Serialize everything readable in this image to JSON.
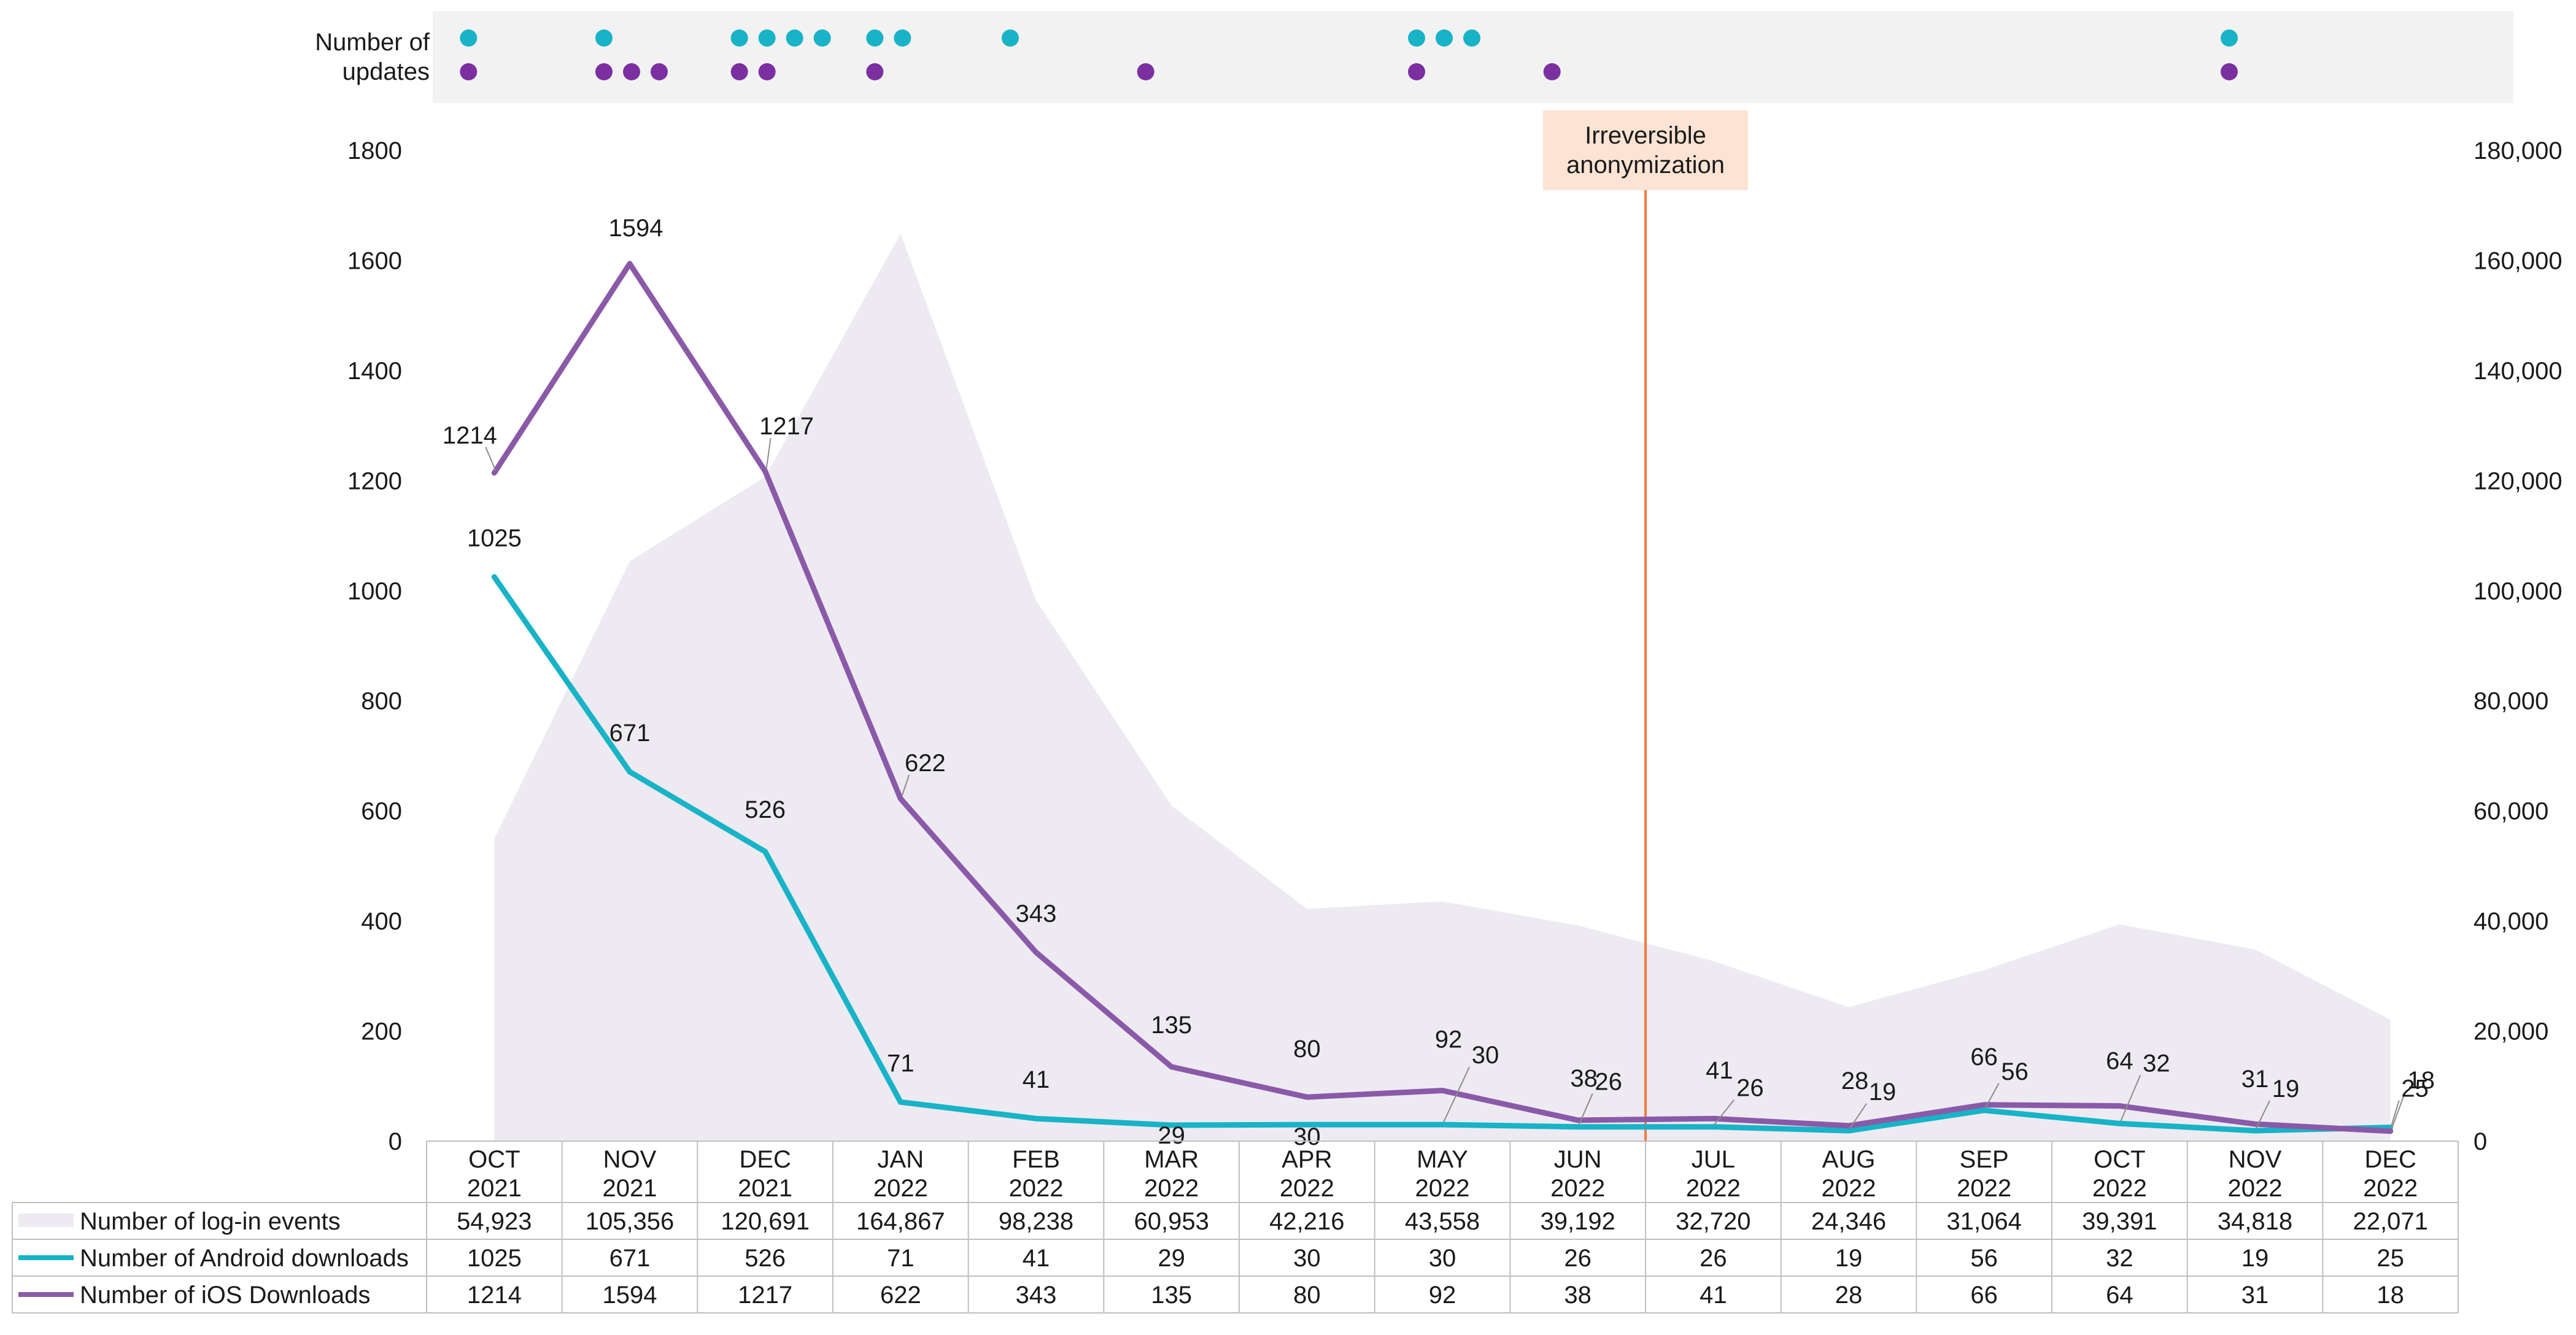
{
  "chart_data": {
    "type": "line",
    "categories": [
      [
        "OCT",
        "2021"
      ],
      [
        "NOV",
        "2021"
      ],
      [
        "DEC",
        "2021"
      ],
      [
        "JAN",
        "2022"
      ],
      [
        "FEB",
        "2022"
      ],
      [
        "MAR",
        "2022"
      ],
      [
        "APR",
        "2022"
      ],
      [
        "MAY",
        "2022"
      ],
      [
        "JUN",
        "2022"
      ],
      [
        "JUL",
        "2022"
      ],
      [
        "AUG",
        "2022"
      ],
      [
        "SEP",
        "2022"
      ],
      [
        "OCT",
        "2022"
      ],
      [
        "NOV",
        "2022"
      ],
      [
        "DEC",
        "2022"
      ]
    ],
    "y_left": {
      "min": 0,
      "max": 1800,
      "ticks": [
        "0",
        "200",
        "400",
        "600",
        "800",
        "1000",
        "1200",
        "1400",
        "1600",
        "1800"
      ]
    },
    "y_right": {
      "min": 0,
      "max": 180000,
      "ticks": [
        "0",
        "20,000",
        "40,000",
        "60,000",
        "80,000",
        "100,000",
        "120,000",
        "140,000",
        "160,000",
        "180,000"
      ]
    },
    "series": [
      {
        "name": "Number of log-in events",
        "kind": "area",
        "axis": "right",
        "color": "#eeeaf2",
        "values": [
          54923,
          105356,
          120691,
          164867,
          98238,
          60953,
          42216,
          43558,
          39192,
          32720,
          24346,
          31064,
          39391,
          34818,
          22071
        ],
        "labels": [
          "54,923",
          "105,356",
          "120,691",
          "164,867",
          "98,238",
          "60,953",
          "42,216",
          "43,558",
          "39,192",
          "32,720",
          "24,346",
          "31,064",
          "39,391",
          "34,818",
          "22,071"
        ]
      },
      {
        "name": "Number of Android downloads",
        "kind": "line",
        "axis": "left",
        "color": "#18b3c6",
        "values": [
          1025,
          671,
          526,
          71,
          41,
          29,
          30,
          30,
          26,
          26,
          19,
          56,
          32,
          19,
          25
        ],
        "labels": [
          "1025",
          "671",
          "526",
          "71",
          "41",
          "29",
          "30",
          "30",
          "26",
          "26",
          "19",
          "56",
          "32",
          "19",
          "25"
        ]
      },
      {
        "name": "Number of iOS Downloads",
        "kind": "line",
        "axis": "left",
        "color": "#8a5aa8",
        "values": [
          1214,
          1594,
          1217,
          622,
          343,
          135,
          80,
          92,
          38,
          41,
          28,
          66,
          64,
          31,
          18
        ],
        "labels": [
          "1214",
          "1594",
          "1217",
          "622",
          "343",
          "135",
          "80",
          "92",
          "38",
          "41",
          "28",
          "66",
          "64",
          "31",
          "18"
        ]
      }
    ],
    "updates": {
      "label_lines": [
        "Number of",
        "updates"
      ],
      "android_color": "#18b3c6",
      "ios_color": "#7b2fa0",
      "android_counts": [
        1,
        1,
        4,
        2,
        1,
        0,
        0,
        3,
        0,
        0,
        0,
        0,
        0,
        1,
        0
      ],
      "ios_counts": [
        1,
        3,
        2,
        1,
        0,
        1,
        0,
        1,
        1,
        0,
        0,
        0,
        0,
        1,
        0
      ]
    },
    "annotation": {
      "lines": [
        "Irreversible",
        "anonymization"
      ],
      "between": [
        8,
        9
      ],
      "line_color": "#f07b3f",
      "box_color": "#fde3d3"
    }
  }
}
